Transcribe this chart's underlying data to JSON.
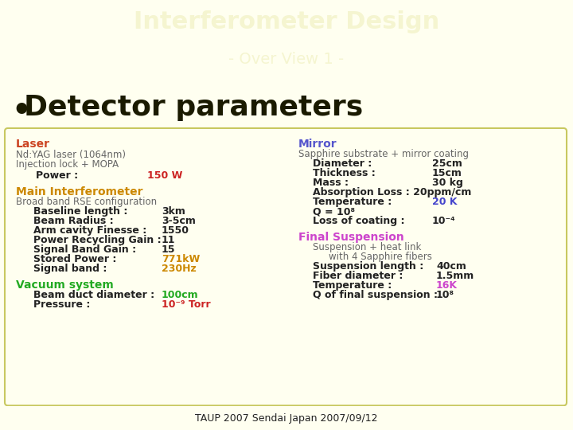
{
  "title": "Interferometer Design",
  "subtitle": "- Over View 1 -",
  "header_bg": "#2e8b00",
  "header_text_color": "#f5f5d0",
  "body_bg": "#fffff0",
  "footer_bg": "#2e8b00",
  "bullet_text": "Detector parameters",
  "bullet_color": "#1a1a00",
  "box_bg": "#fffff0",
  "box_border": "#c8c860",
  "footer_text": "TAUP 2007 Sendai Japan 2007/09/12",
  "footer_color": "#222222",
  "laser_title_color": "#cc4422",
  "mi_title_color": "#cc8800",
  "vac_title_color": "#22aa22",
  "mirror_title_color": "#5555cc",
  "fs_title_color": "#cc44cc",
  "highlight_red": "#cc2222",
  "highlight_orange": "#cc8800",
  "highlight_green": "#22aa22",
  "highlight_blue": "#4444cc",
  "highlight_purple": "#aa44aa",
  "text_dark": "#222222",
  "text_gray": "#666666"
}
